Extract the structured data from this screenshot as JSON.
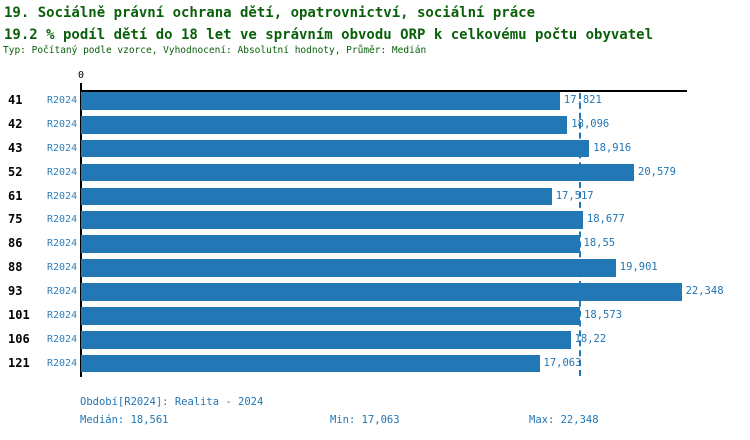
{
  "header": {
    "title_line1": "19. Sociálně právní ochrana dětí, opatrovnictví, sociální práce",
    "title_line2": "19.2 % podíl dětí do 18 let ve správním obvodu ORP k celkovému počtu obyvatel",
    "meta_line": "Typ: Počítaný podle vzorce, Vyhodnocení: Absolutní hodnoty, Průměr: Medián"
  },
  "chart_data": {
    "type": "bar",
    "orientation": "horizontal",
    "series_label": "R2024",
    "categories": [
      "41",
      "42",
      "43",
      "52",
      "61",
      "75",
      "86",
      "88",
      "93",
      "101",
      "106",
      "121"
    ],
    "values": [
      17.821,
      18.096,
      18.916,
      20.579,
      17.517,
      18.677,
      18.55,
      19.901,
      22.348,
      18.573,
      18.22,
      17.063
    ],
    "value_labels": [
      "17,821",
      "18,096",
      "18,916",
      "20,579",
      "17,517",
      "18,677",
      "18,55",
      "19,901",
      "22,348",
      "18,573",
      "18,22",
      "17,063"
    ],
    "axis": {
      "origin_label": "0",
      "xmax": 22.55
    },
    "median_value": 18.561,
    "bar_color": "#2277b5",
    "grid": false,
    "legend_position": "none"
  },
  "footer": {
    "period_label": "Období[R2024]: Realita - 2024",
    "median_label": "Medián: 18,561",
    "min_label": "Min: 17,063",
    "max_label": "Max: 22,348"
  }
}
